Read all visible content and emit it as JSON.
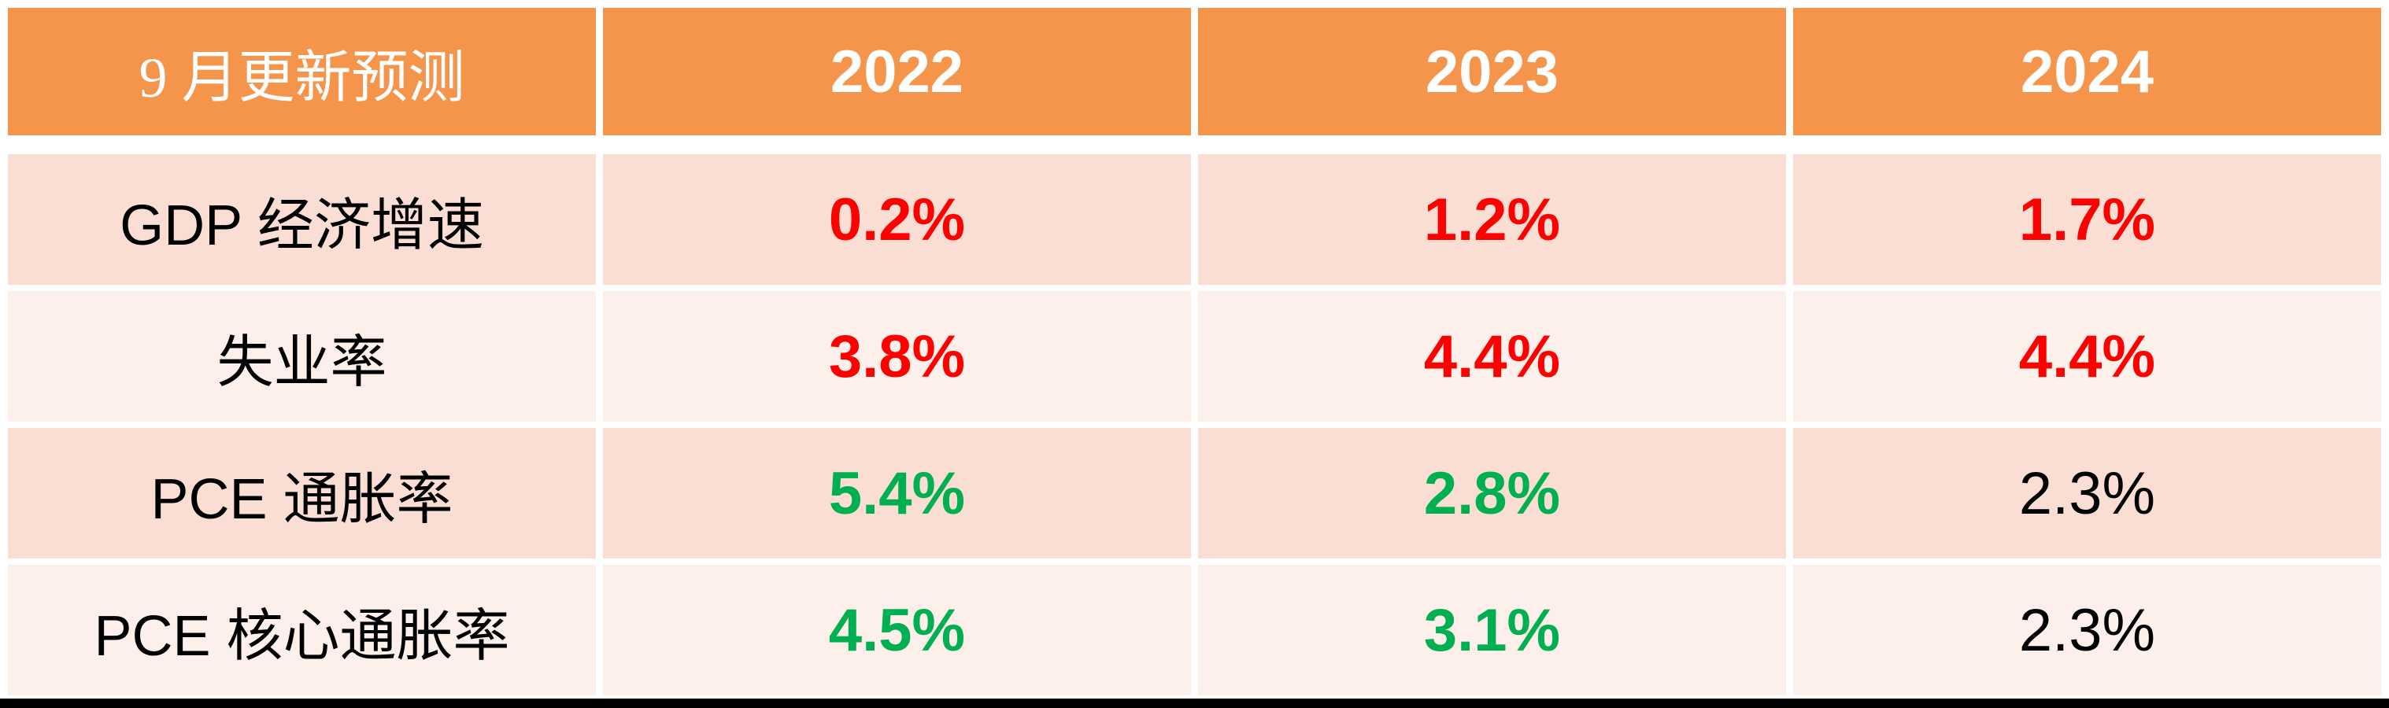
{
  "chart_data": {
    "type": "table",
    "title": "9 月更新预测",
    "columns": [
      "9 月更新预测",
      "2022",
      "2023",
      "2024"
    ],
    "rows": [
      {
        "label": "GDP 经济增速",
        "values": [
          "0.2%",
          "1.2%",
          "1.7%"
        ],
        "value_colors": [
          "red",
          "red",
          "red"
        ]
      },
      {
        "label": "失业率",
        "values": [
          "3.8%",
          "4.4%",
          "4.4%"
        ],
        "value_colors": [
          "red",
          "red",
          "red"
        ]
      },
      {
        "label": "PCE 通胀率",
        "values": [
          "5.4%",
          "2.8%",
          "2.3%"
        ],
        "value_colors": [
          "green",
          "green",
          "black"
        ]
      },
      {
        "label": "PCE 核心通胀率",
        "values": [
          "4.5%",
          "3.1%",
          "2.3%"
        ],
        "value_colors": [
          "green",
          "green",
          "black"
        ]
      }
    ],
    "layout_hints": {
      "banded_rows": true,
      "all_cells_centered": true,
      "grid_lines": "white gaps between cells"
    }
  },
  "colors": {
    "header_bg": "#F5954B",
    "header_text": "#FFFFFF",
    "band_dark_bg": "#FBDED3",
    "band_light_bg": "#FDEFE9",
    "red_value": "#FF0000",
    "green_value": "#00B050",
    "black_value": "#000000",
    "bottom_bar": "#000000",
    "background": "#FFFFFF"
  }
}
